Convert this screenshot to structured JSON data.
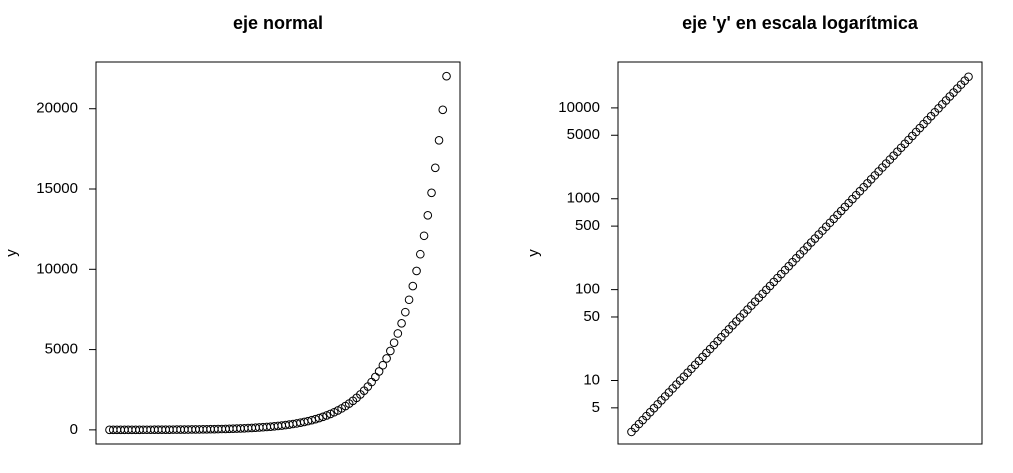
{
  "chart_data": [
    {
      "type": "scatter",
      "title": "eje normal",
      "ylabel": "y",
      "log_y": false,
      "color": "#000000",
      "ylim": [
        -880,
        22910
      ],
      "yticks": [
        0,
        5000,
        10000,
        15000,
        20000
      ],
      "values": [
        2.718,
        3.004,
        3.32,
        3.669,
        4.055,
        4.482,
        4.953,
        5.474,
        6.05,
        6.686,
        7.389,
        8.166,
        9.025,
        9.974,
        11.02,
        12.18,
        13.46,
        14.88,
        16.44,
        18.17,
        20.09,
        22.2,
        24.53,
        27.11,
        29.96,
        33.12,
        36.6,
        40.45,
        44.7,
        49.4,
        54.6,
        60.34,
        66.69,
        73.7,
        81.45,
        90.02,
        99.48,
        109.9,
        121.5,
        134.3,
        148.4,
        164.0,
        181.3,
        200.3,
        221.4,
        244.7,
        270.4,
        298.9,
        330.3,
        365.0,
        403.4,
        445.9,
        492.7,
        544.6,
        601.8,
        665.1,
        735.1,
        812.4,
        897.8,
        992.3,
        1096.6,
        1212.0,
        1339.4,
        1480.3,
        1636.0,
        1808.0,
        1998.2,
        2208.3,
        2440.6,
        2697.3,
        2981.0,
        3294.5,
        3641.0,
        4023.9,
        4447.1,
        4914.8,
        5431.7,
        6002.9,
        6634.2,
        7332.0,
        8103.1,
        8955.3,
        9897.1,
        10938,
        12088,
        13360,
        14765,
        16318,
        18034,
        19930,
        22026
      ]
    },
    {
      "type": "scatter",
      "title": "eje 'y' en escala logarítmica",
      "ylabel": "y",
      "log_y": true,
      "color": "#000000",
      "ylim": [
        2,
        32000
      ],
      "yticks": [
        5,
        10,
        50,
        100,
        500,
        1000,
        5000,
        10000
      ],
      "values": [
        2.718,
        3.004,
        3.32,
        3.669,
        4.055,
        4.482,
        4.953,
        5.474,
        6.05,
        6.686,
        7.389,
        8.166,
        9.025,
        9.974,
        11.02,
        12.18,
        13.46,
        14.88,
        16.44,
        18.17,
        20.09,
        22.2,
        24.53,
        27.11,
        29.96,
        33.12,
        36.6,
        40.45,
        44.7,
        49.4,
        54.6,
        60.34,
        66.69,
        73.7,
        81.45,
        90.02,
        99.48,
        109.9,
        121.5,
        134.3,
        148.4,
        164.0,
        181.3,
        200.3,
        221.4,
        244.7,
        270.4,
        298.9,
        330.3,
        365.0,
        403.4,
        445.9,
        492.7,
        544.6,
        601.8,
        665.1,
        735.1,
        812.4,
        897.8,
        992.3,
        1096.6,
        1212.0,
        1339.4,
        1480.3,
        1636.0,
        1808.0,
        1998.2,
        2208.3,
        2440.6,
        2697.3,
        2981.0,
        3294.5,
        3641.0,
        4023.9,
        4447.1,
        4914.8,
        5431.7,
        6002.9,
        6634.2,
        7332.0,
        8103.1,
        8955.3,
        9897.1,
        10938,
        12088,
        13360,
        14765,
        16318,
        18034,
        19930,
        22026
      ]
    }
  ]
}
